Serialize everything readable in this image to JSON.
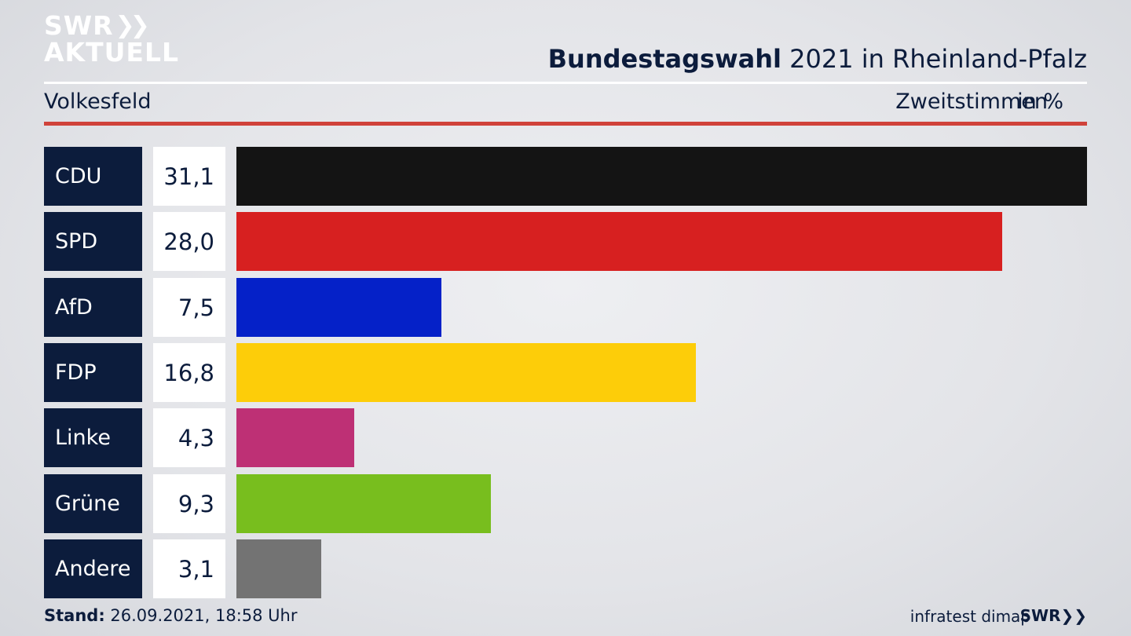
{
  "logo": {
    "line1": "SWR",
    "line2": "AKTUELL",
    "chevrons": "»"
  },
  "header": {
    "title_bold": "Bundestagswahl",
    "title_rest": " 2021 in Rheinland-Pfalz",
    "subtitle": "Volkesfeld",
    "measure": "Zweitstimmen",
    "unit": "in %"
  },
  "chart_data": {
    "type": "bar",
    "orientation": "horizontal",
    "categories": [
      "CDU",
      "SPD",
      "AfD",
      "FDP",
      "Linke",
      "Grüne",
      "Andere"
    ],
    "values": [
      31.1,
      28.0,
      7.5,
      16.8,
      4.3,
      9.3,
      3.1
    ],
    "value_labels": [
      "31,1",
      "28,0",
      "7,5",
      "16,8",
      "4,3",
      "9,3",
      "3,1"
    ],
    "colors": [
      "#141414",
      "#d72020",
      "#0521c8",
      "#fdcd09",
      "#be3075",
      "#78be1e",
      "#737373"
    ],
    "title": "Bundestagswahl 2021 in Rheinland-Pfalz",
    "xlim": [
      0,
      31.1
    ],
    "grid": false
  },
  "footer": {
    "stand_label": "Stand:",
    "stand_value": " 26.09.2021, 18:58 Uhr",
    "source": "infratest dimap",
    "brand": "SWR"
  }
}
